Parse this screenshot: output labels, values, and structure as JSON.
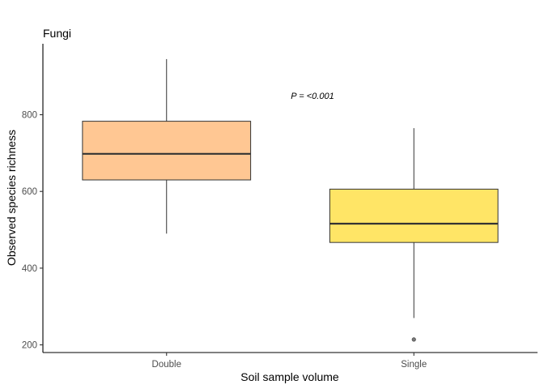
{
  "chart_data": {
    "type": "box",
    "title": "Fungi",
    "xlabel": "Soil sample volume",
    "ylabel": "Observed species richness",
    "ylim": [
      180,
      985
    ],
    "yticks": [
      200,
      400,
      600,
      800
    ],
    "ytick_labels": [
      "200",
      "400",
      "600",
      "800"
    ],
    "grid": false,
    "legend": "none",
    "categories": [
      "Double",
      "Single"
    ],
    "boxes": [
      {
        "category": "Double",
        "min": 490,
        "q1": 630,
        "median": 698,
        "q3": 783,
        "max": 945,
        "outliers": [],
        "color": "#FFC793"
      },
      {
        "category": "Single",
        "min": 270,
        "q1": 467,
        "median": 516,
        "q3": 606,
        "max": 765,
        "outliers": [
          214
        ],
        "color": "#FFE566"
      }
    ],
    "annotation": {
      "text": "P = <0.001"
    }
  }
}
